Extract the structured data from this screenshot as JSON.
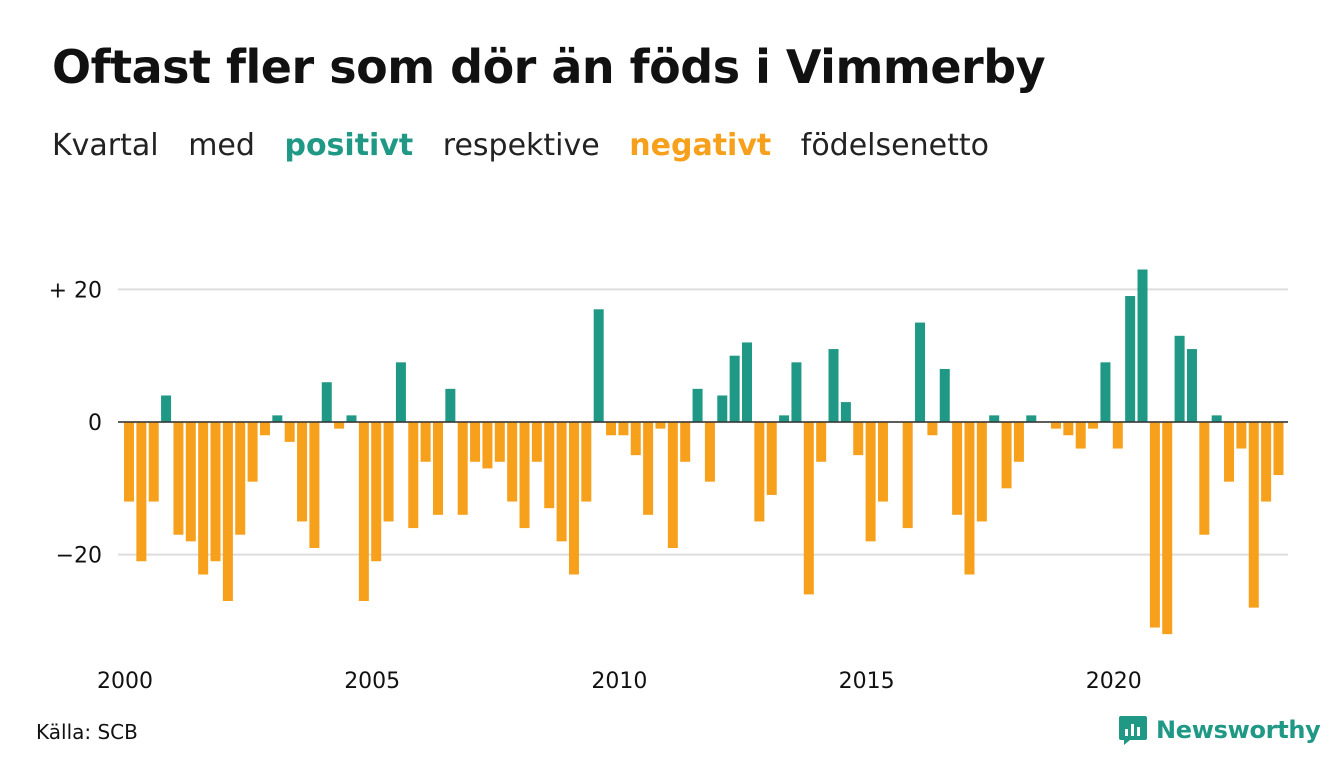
{
  "title": "Oftast fler som dör än föds i Vimmerby",
  "subtitle": {
    "w1": "Kvartal",
    "w2": "med",
    "pos": "positivt",
    "w3": "respektive",
    "neg": "negativt",
    "w4": "födelsenetto"
  },
  "source": "Källa: SCB",
  "brand": "Newsworthy",
  "colors": {
    "positive": "#1f9886",
    "negative": "#f6a01b",
    "grid": "#dddddd"
  },
  "chart_data": {
    "type": "bar",
    "ylim": [
      -35,
      25
    ],
    "y_ticks": [
      {
        "value": 20,
        "label": "+ 20"
      },
      {
        "value": 0,
        "label": "0"
      },
      {
        "value": -20,
        "label": "−20"
      }
    ],
    "x_ticks": [
      "2000",
      "2005",
      "2010",
      "2015",
      "2020"
    ],
    "start_year": 2000,
    "grid": true,
    "values": [
      -12,
      -21,
      -12,
      4,
      -17,
      -18,
      -23,
      -21,
      -27,
      -17,
      -9,
      -2,
      1,
      -3,
      -15,
      -19,
      6,
      -1,
      1,
      -27,
      -21,
      -15,
      9,
      -16,
      -6,
      -14,
      5,
      -14,
      -6,
      -7,
      -6,
      -12,
      -16,
      -6,
      -13,
      -18,
      -23,
      -12,
      17,
      -2,
      -2,
      -5,
      -14,
      -1,
      -19,
      -6,
      5,
      -9,
      4,
      10,
      12,
      -15,
      -11,
      1,
      9,
      -26,
      -6,
      11,
      3,
      -5,
      -18,
      -12,
      0,
      -16,
      15,
      -2,
      8,
      -14,
      -23,
      -15,
      1,
      -10,
      -6,
      1,
      0,
      -1,
      -2,
      -4,
      -1,
      9,
      -4,
      19,
      23,
      -31,
      -32,
      13,
      11,
      -17,
      1,
      -9,
      -4,
      -28,
      -12,
      -8
    ]
  }
}
